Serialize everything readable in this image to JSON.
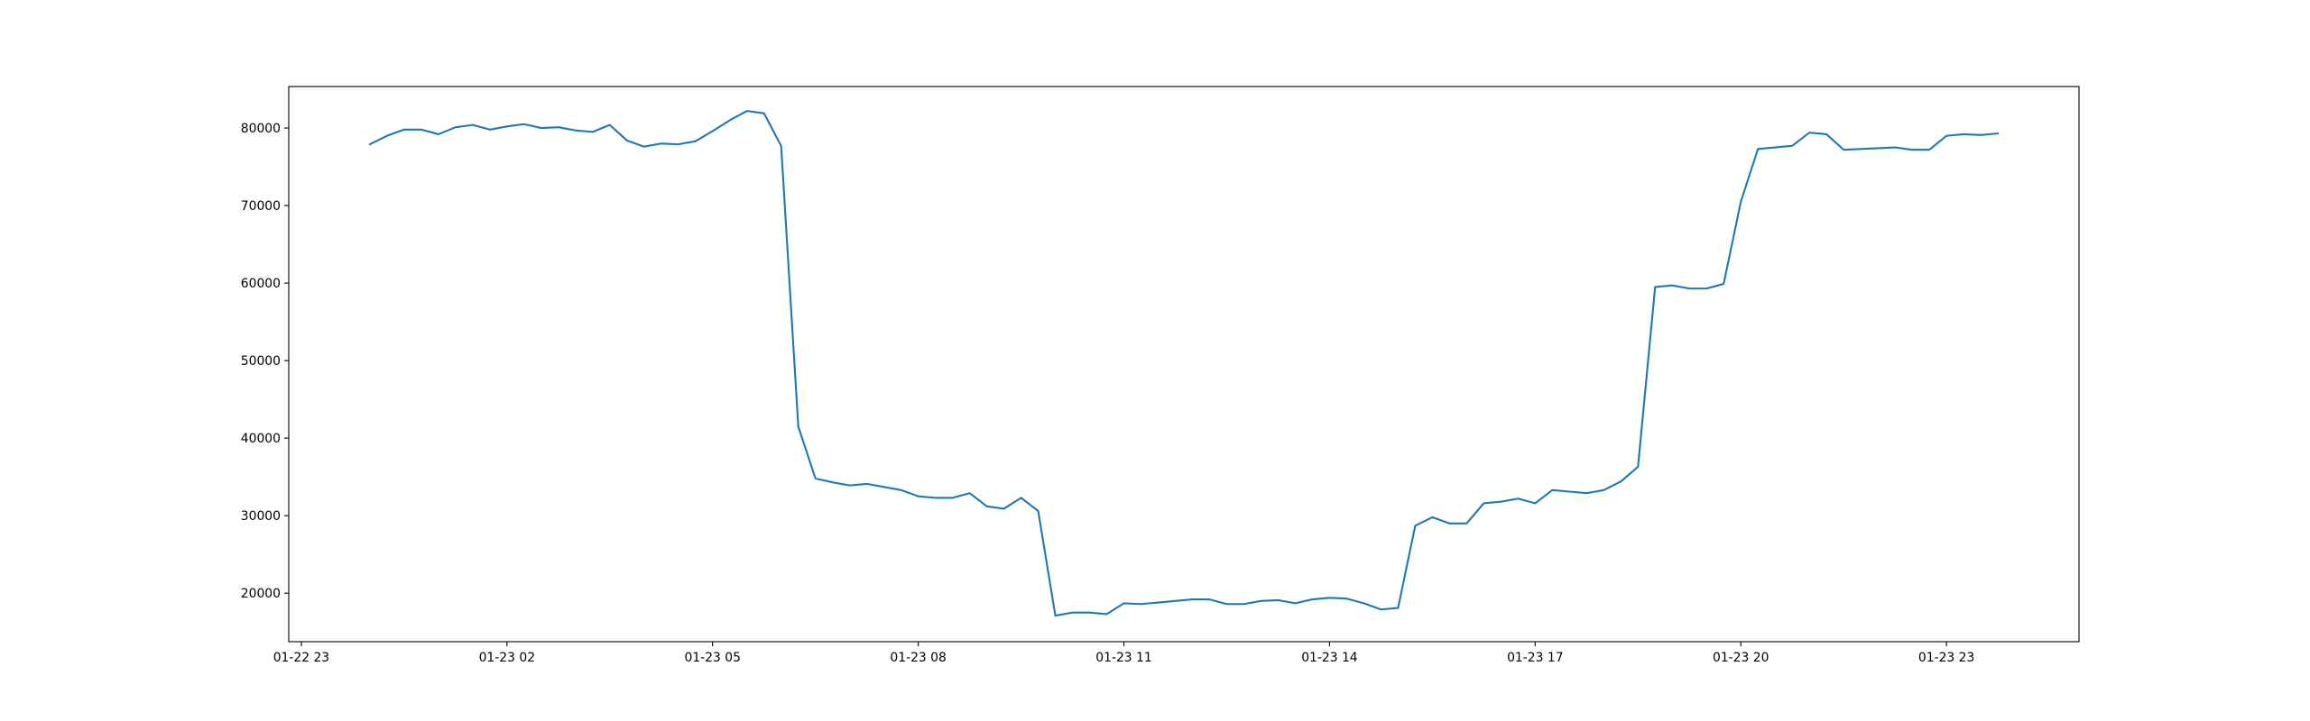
{
  "chart_data": {
    "type": "line",
    "x": [
      "01-23 00:00",
      "01-23 00:15",
      "01-23 00:30",
      "01-23 00:45",
      "01-23 01:00",
      "01-23 01:15",
      "01-23 01:30",
      "01-23 01:45",
      "01-23 02:00",
      "01-23 02:15",
      "01-23 02:30",
      "01-23 02:45",
      "01-23 03:00",
      "01-23 03:15",
      "01-23 03:30",
      "01-23 03:45",
      "01-23 04:00",
      "01-23 04:15",
      "01-23 04:30",
      "01-23 04:45",
      "01-23 05:00",
      "01-23 05:15",
      "01-23 05:30",
      "01-23 05:45",
      "01-23 06:00",
      "01-23 06:15",
      "01-23 06:30",
      "01-23 06:45",
      "01-23 07:00",
      "01-23 07:15",
      "01-23 07:30",
      "01-23 07:45",
      "01-23 08:00",
      "01-23 08:15",
      "01-23 08:30",
      "01-23 08:45",
      "01-23 09:00",
      "01-23 09:15",
      "01-23 09:30",
      "01-23 09:45",
      "01-23 10:00",
      "01-23 10:15",
      "01-23 10:30",
      "01-23 10:45",
      "01-23 11:00",
      "01-23 11:15",
      "01-23 11:30",
      "01-23 11:45",
      "01-23 12:00",
      "01-23 12:15",
      "01-23 12:30",
      "01-23 12:45",
      "01-23 13:00",
      "01-23 13:15",
      "01-23 13:30",
      "01-23 13:45",
      "01-23 14:00",
      "01-23 14:15",
      "01-23 14:30",
      "01-23 14:45",
      "01-23 15:00",
      "01-23 15:15",
      "01-23 15:30",
      "01-23 15:45",
      "01-23 16:00",
      "01-23 16:15",
      "01-23 16:30",
      "01-23 16:45",
      "01-23 17:00",
      "01-23 17:15",
      "01-23 17:30",
      "01-23 17:45",
      "01-23 18:00",
      "01-23 18:15",
      "01-23 18:30",
      "01-23 18:45",
      "01-23 19:00",
      "01-23 19:15",
      "01-23 19:30",
      "01-23 19:45",
      "01-23 20:00",
      "01-23 20:15",
      "01-23 20:30",
      "01-23 20:45",
      "01-23 21:00",
      "01-23 21:15",
      "01-23 21:30",
      "01-23 21:45",
      "01-23 22:00",
      "01-23 22:15",
      "01-23 22:30",
      "01-23 22:45",
      "01-23 23:00",
      "01-23 23:15",
      "01-23 23:30",
      "01-23 23:45"
    ],
    "series": [
      {
        "color": "#1f77b4",
        "values": [
          77900,
          79000,
          79800,
          79800,
          79200,
          80100,
          80400,
          79800,
          80200,
          80500,
          80000,
          80100,
          79700,
          79500,
          80400,
          78400,
          77600,
          78000,
          77900,
          78300,
          79600,
          81000,
          82200,
          81900,
          77700,
          41500,
          34800,
          34300,
          33900,
          34100,
          33700,
          33300,
          32500,
          32300,
          32300,
          32900,
          31200,
          30900,
          32300,
          30600,
          17100,
          17500,
          17500,
          17300,
          18700,
          18600,
          18800,
          19000,
          19200,
          19200,
          18600,
          18600,
          19000,
          19100,
          18700,
          19200,
          19400,
          19300,
          18700,
          17900,
          18100,
          28700,
          29800,
          29000,
          29000,
          31600,
          31800,
          32200,
          31600,
          33300,
          33100,
          32900,
          33300,
          34400,
          36300,
          59500,
          59700,
          59300,
          59300,
          59900,
          70500,
          77300,
          77500,
          77700,
          79400,
          79200,
          77200,
          77300,
          77400,
          77500,
          77200,
          77200,
          79000,
          79200,
          79100,
          79300
        ]
      }
    ],
    "xlim": [
      "01-22 22:49",
      "01-24 00:56"
    ],
    "xticks": [
      "01-22 23",
      "01-23 02",
      "01-23 05",
      "01-23 08",
      "01-23 11",
      "01-23 14",
      "01-23 17",
      "01-23 20",
      "01-23 23"
    ],
    "ylim": [
      13745,
      85355
    ],
    "yticks": [
      20000,
      30000,
      40000,
      50000,
      60000,
      70000,
      80000
    ]
  }
}
